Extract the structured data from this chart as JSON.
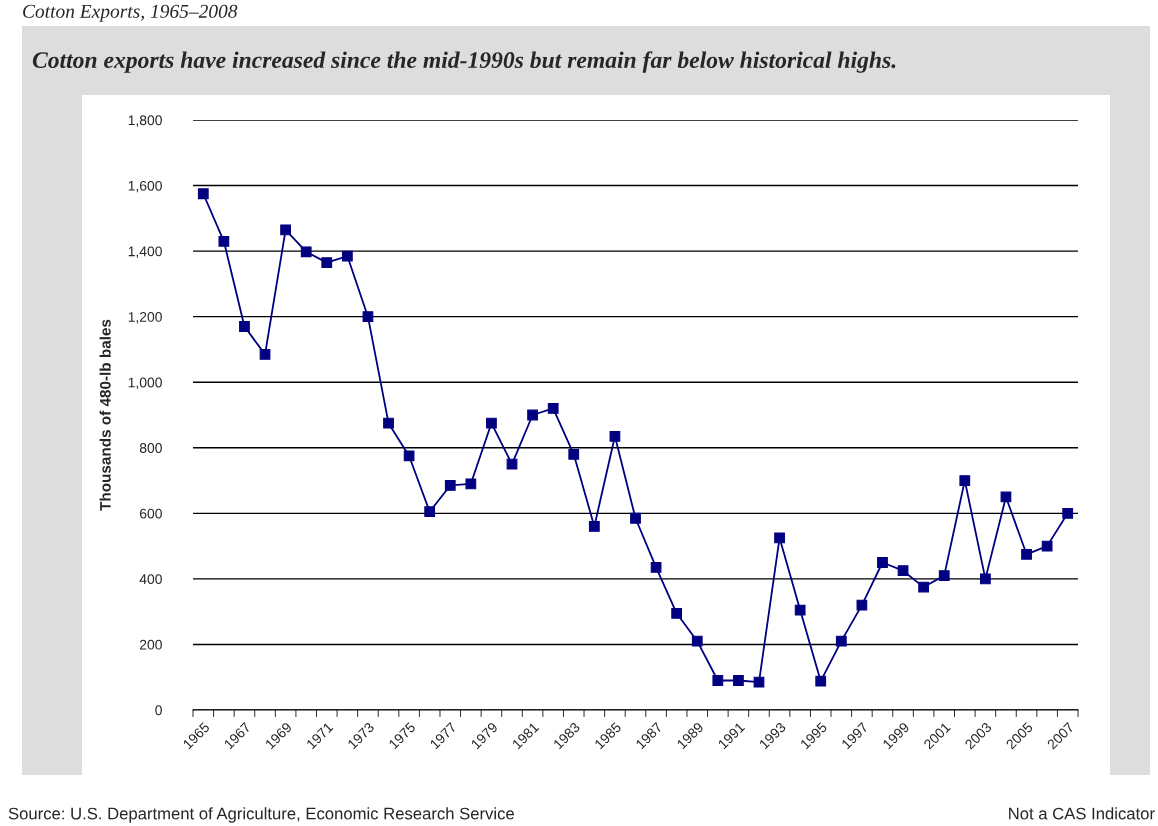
{
  "chart_data": {
    "type": "line",
    "title": "Cotton Exports, 1965–2008",
    "subtitle": "Cotton exports have increased since the mid-1990s but remain far below historical highs.",
    "ylabel": "Thousands of 480-lb bales",
    "categories": [
      "1965",
      null,
      "1967",
      null,
      "1969",
      null,
      "1971",
      null,
      "1973",
      null,
      "1975",
      null,
      "1977",
      null,
      "1979",
      null,
      "1981",
      null,
      "1983",
      null,
      "1985",
      null,
      "1987",
      null,
      "1989",
      null,
      "1991",
      null,
      "1993",
      null,
      "1995",
      null,
      "1997",
      null,
      "1999",
      null,
      "2001",
      null,
      "2003",
      null,
      "2005",
      null,
      "2007"
    ],
    "series": [
      {
        "color": "#000080",
        "values": [
          1575,
          1430,
          1170,
          1085,
          1465,
          1398,
          1365,
          1385,
          1200,
          875,
          775,
          605,
          685,
          690,
          875,
          750,
          900,
          920,
          780,
          560,
          835,
          585,
          435,
          295,
          210,
          90,
          90,
          85,
          525,
          305,
          88,
          210,
          320,
          450,
          425,
          375,
          410,
          700,
          400,
          650,
          475,
          500,
          600
        ]
      }
    ],
    "ylim": [
      0,
      1800
    ],
    "yticks": [
      0,
      {
        "value": 200,
        "label": "200"
      },
      {
        "value": 400,
        "label": "400"
      },
      {
        "value": 600,
        "label": "600"
      },
      {
        "value": 800,
        "label": "800"
      },
      {
        "value": 1000,
        "label": "1,000"
      },
      {
        "value": 1200,
        "label": "1,200"
      },
      {
        "value": 1400,
        "label": "1,400"
      },
      {
        "value": 1600,
        "label": "1,600"
      },
      {
        "value": 1800,
        "label": "1,800"
      }
    ],
    "grid": "y",
    "marker": "square",
    "line_style": "solid",
    "annotations": [
      "Source: U.S. Department of Agriculture, Economic Research Service",
      "Not a CAS Indicator"
    ]
  }
}
